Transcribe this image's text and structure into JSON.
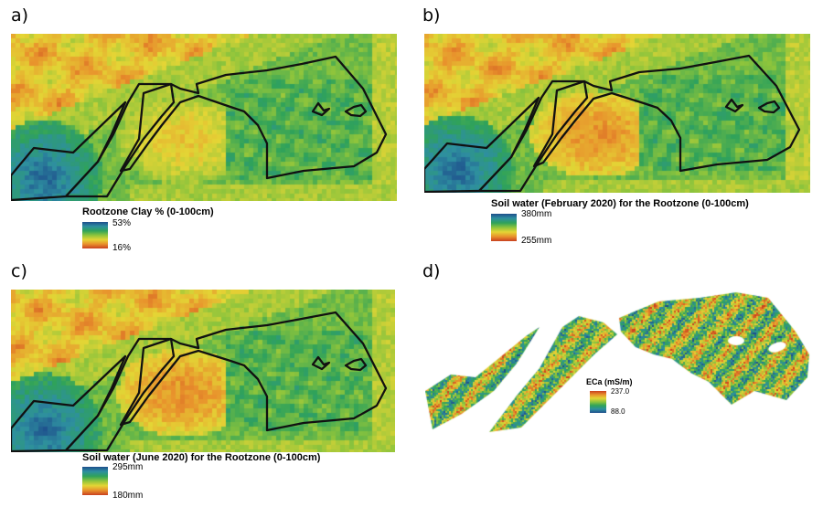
{
  "colors": {
    "high": "#1e4e8c",
    "mid_high": "#2e8fa0",
    "mid": "#2fa25a",
    "mid_low": "#8dc43c",
    "yellow": "#e4d535",
    "orange": "#e8912c",
    "low": "#c9401f",
    "outline": "#111111"
  },
  "panels": {
    "a": {
      "letter": "a)",
      "legend_title": "Rootzone Clay % (0-100cm)",
      "legend_max": "53%",
      "legend_min": "16%"
    },
    "b": {
      "letter": "b)",
      "legend_title": "Soil water (February 2020) for the Rootzone (0-100cm)",
      "legend_max": "380mm",
      "legend_min": "255mm"
    },
    "c": {
      "letter": "c)",
      "legend_title": "Soil water (June 2020) for the Rootzone (0-100cm)",
      "legend_max": "295mm",
      "legend_min": "180mm"
    },
    "d": {
      "letter": "d)",
      "legend_title": "ECa (mS/m)",
      "legend_max": "237.0",
      "legend_min": "88.0"
    }
  }
}
